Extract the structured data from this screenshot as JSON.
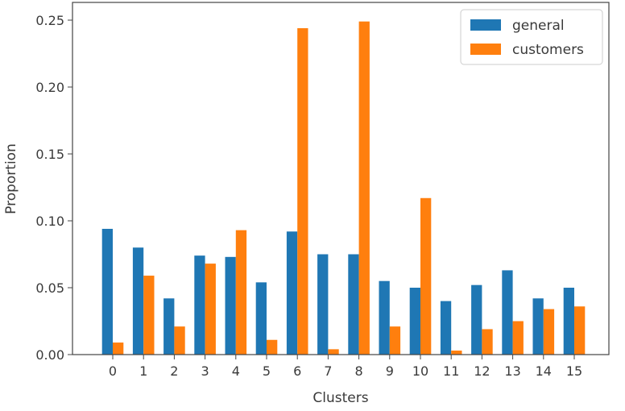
{
  "chart_data": {
    "type": "bar",
    "title": "",
    "xlabel": "Clusters",
    "ylabel": "Proportion",
    "categories": [
      "0",
      "1",
      "2",
      "3",
      "4",
      "5",
      "6",
      "7",
      "8",
      "9",
      "10",
      "11",
      "12",
      "13",
      "14",
      "15"
    ],
    "series": [
      {
        "name": "general",
        "color": "#1f77b4",
        "values": [
          0.094,
          0.08,
          0.042,
          0.074,
          0.073,
          0.054,
          0.092,
          0.075,
          0.075,
          0.055,
          0.05,
          0.04,
          0.052,
          0.063,
          0.042,
          0.05
        ]
      },
      {
        "name": "customers",
        "color": "#ff7f0e",
        "values": [
          0.009,
          0.059,
          0.021,
          0.068,
          0.093,
          0.011,
          0.244,
          0.004,
          0.249,
          0.021,
          0.117,
          0.003,
          0.019,
          0.025,
          0.034,
          0.036
        ]
      }
    ],
    "ylim": [
      0,
      0.25
    ],
    "yticks": [
      "0.00",
      "0.05",
      "0.10",
      "0.15",
      "0.20",
      "0.25"
    ],
    "grid": false,
    "legend": "top-right"
  }
}
